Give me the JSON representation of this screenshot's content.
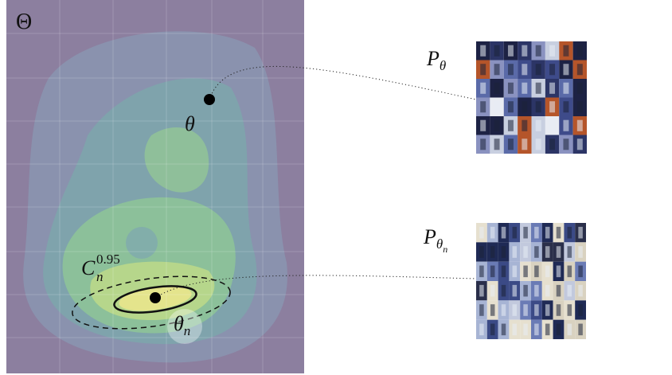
{
  "labels": {
    "space": "Θ",
    "theta": "θ",
    "theta_n": {
      "base": "θ",
      "sub": "n"
    },
    "confidence": {
      "base": "C",
      "sub": "n",
      "sup": "0.95"
    },
    "p_theta": {
      "base": "P",
      "sub": "θ"
    },
    "p_theta_n": {
      "base": "P",
      "sub": "θ",
      "subsub": "n"
    }
  }
}
